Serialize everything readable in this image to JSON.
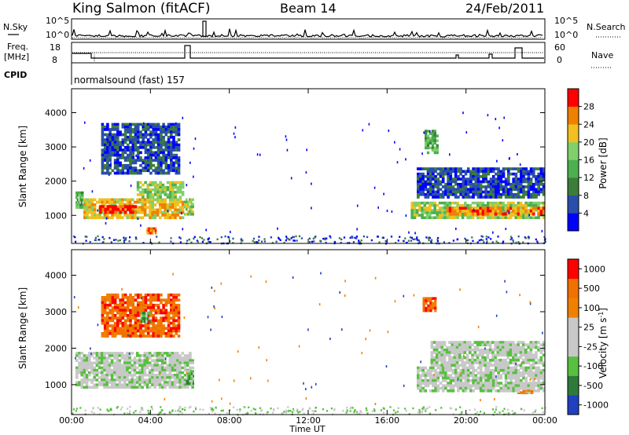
{
  "header": {
    "station": "King Salmon (fitACF)",
    "beam": "Beam 14",
    "date": "24/Feb/2011"
  },
  "status_panels": {
    "nsky_label": "N.Sky",
    "nsearch_label": "N.Search",
    "nsky_ticks": [
      "10^5",
      "10^0"
    ],
    "nsearch_ticks": [
      "10^5",
      "10^0"
    ],
    "freq_label_line1": "Freq.",
    "freq_label_line2": "[MHz]",
    "freq_ticks": [
      "18",
      "8"
    ],
    "nave_label": "Nave",
    "nave_ticks": [
      "60",
      "0"
    ],
    "cpid_label": "CPID",
    "cpid_value": "normalsound (fast) 157"
  },
  "chart_data": [
    {
      "type": "heatmap",
      "title": "",
      "xlabel": "Time UT",
      "ylabel": "Slant Range [km]",
      "x_ticks": [
        "00:00",
        "04:00",
        "08:00",
        "12:00",
        "16:00",
        "20:00",
        "00:00"
      ],
      "y_ticks": [
        "1000",
        "2000",
        "3000",
        "4000"
      ],
      "xlim_hours": [
        0,
        24
      ],
      "ylim_km": [
        180,
        4700
      ],
      "colorbar_label": "Power [dB]",
      "colorbar_ticks": [
        "4",
        "8",
        "12",
        "16",
        "20",
        "24",
        "28"
      ],
      "colors": [
        "#0000ff",
        "#2a4faa",
        "#3c7d3a",
        "#4caf50",
        "#7fd06b",
        "#f0c020",
        "#f08000",
        "#ff0000"
      ],
      "bands": [
        {
          "h0": 0.2,
          "h1": 0.6,
          "r0": 1200,
          "r1": 1700,
          "level": 3
        },
        {
          "h0": 0.6,
          "h1": 5.7,
          "r0": 900,
          "r1": 1500,
          "level": 5
        },
        {
          "h0": 1.4,
          "h1": 3.3,
          "r0": 1050,
          "r1": 1300,
          "level": 7
        },
        {
          "h0": 3.3,
          "h1": 5.7,
          "r0": 1500,
          "r1": 2000,
          "level": 4
        },
        {
          "h0": 1.5,
          "h1": 5.5,
          "r0": 2200,
          "r1": 3700,
          "level": 1
        },
        {
          "h0": 3.8,
          "h1": 4.3,
          "r0": 450,
          "r1": 650,
          "level": 6
        },
        {
          "h0": 5.7,
          "h1": 6.2,
          "r0": 1000,
          "r1": 1500,
          "level": 4
        },
        {
          "h0": 17.2,
          "h1": 24.0,
          "r0": 900,
          "r1": 1400,
          "level": 4
        },
        {
          "h0": 19.0,
          "h1": 24.0,
          "r0": 1000,
          "r1": 1250,
          "level": 6
        },
        {
          "h0": 17.5,
          "h1": 24.0,
          "r0": 1500,
          "r1": 2400,
          "level": 1
        },
        {
          "h0": 17.9,
          "h1": 18.6,
          "r0": 2800,
          "r1": 3500,
          "level": 3
        }
      ]
    },
    {
      "type": "heatmap",
      "title": "",
      "xlabel": "Time UT",
      "ylabel": "Slant Range [km]",
      "x_ticks": [
        "00:00",
        "04:00",
        "08:00",
        "12:00",
        "16:00",
        "20:00",
        "00:00"
      ],
      "y_ticks": [
        "1000",
        "2000",
        "3000",
        "4000"
      ],
      "xlim_hours": [
        0,
        24
      ],
      "ylim_km": [
        180,
        4700
      ],
      "colorbar_label": "Velocity [m s",
      "colorbar_unit_sup": "-1",
      "colorbar_unit_end": "]",
      "colorbar_ticks": [
        "1000",
        "500",
        "100",
        "25",
        "-25",
        "-100",
        "-500",
        "-1000"
      ],
      "colors": [
        "#2040c0",
        "#2f7a3a",
        "#58c040",
        "#c8c8c8",
        "#c8c8c8",
        "#f08000",
        "#f07000",
        "#ff0000"
      ],
      "bands": [
        {
          "h0": 0.2,
          "h1": 6.2,
          "r0": 900,
          "r1": 1900,
          "level": 3
        },
        {
          "h0": 17.5,
          "h1": 24.0,
          "r0": 800,
          "r1": 1500,
          "level": 3
        },
        {
          "h0": 18.2,
          "h1": 24.0,
          "r0": 1500,
          "r1": 2200,
          "level": 3
        },
        {
          "h0": 17.8,
          "h1": 18.5,
          "r0": 3000,
          "r1": 3400,
          "level": 6
        },
        {
          "h0": 1.5,
          "h1": 5.5,
          "r0": 2300,
          "r1": 3500,
          "level": 6
        },
        {
          "h0": 3.5,
          "h1": 4.0,
          "r0": 2700,
          "r1": 3000,
          "level": 2
        },
        {
          "h0": 5.8,
          "h1": 6.2,
          "r0": 1000,
          "r1": 1400,
          "level": 2
        },
        {
          "h0": 22.6,
          "h1": 23.4,
          "r0": 750,
          "r1": 850,
          "level": 5
        }
      ]
    }
  ]
}
